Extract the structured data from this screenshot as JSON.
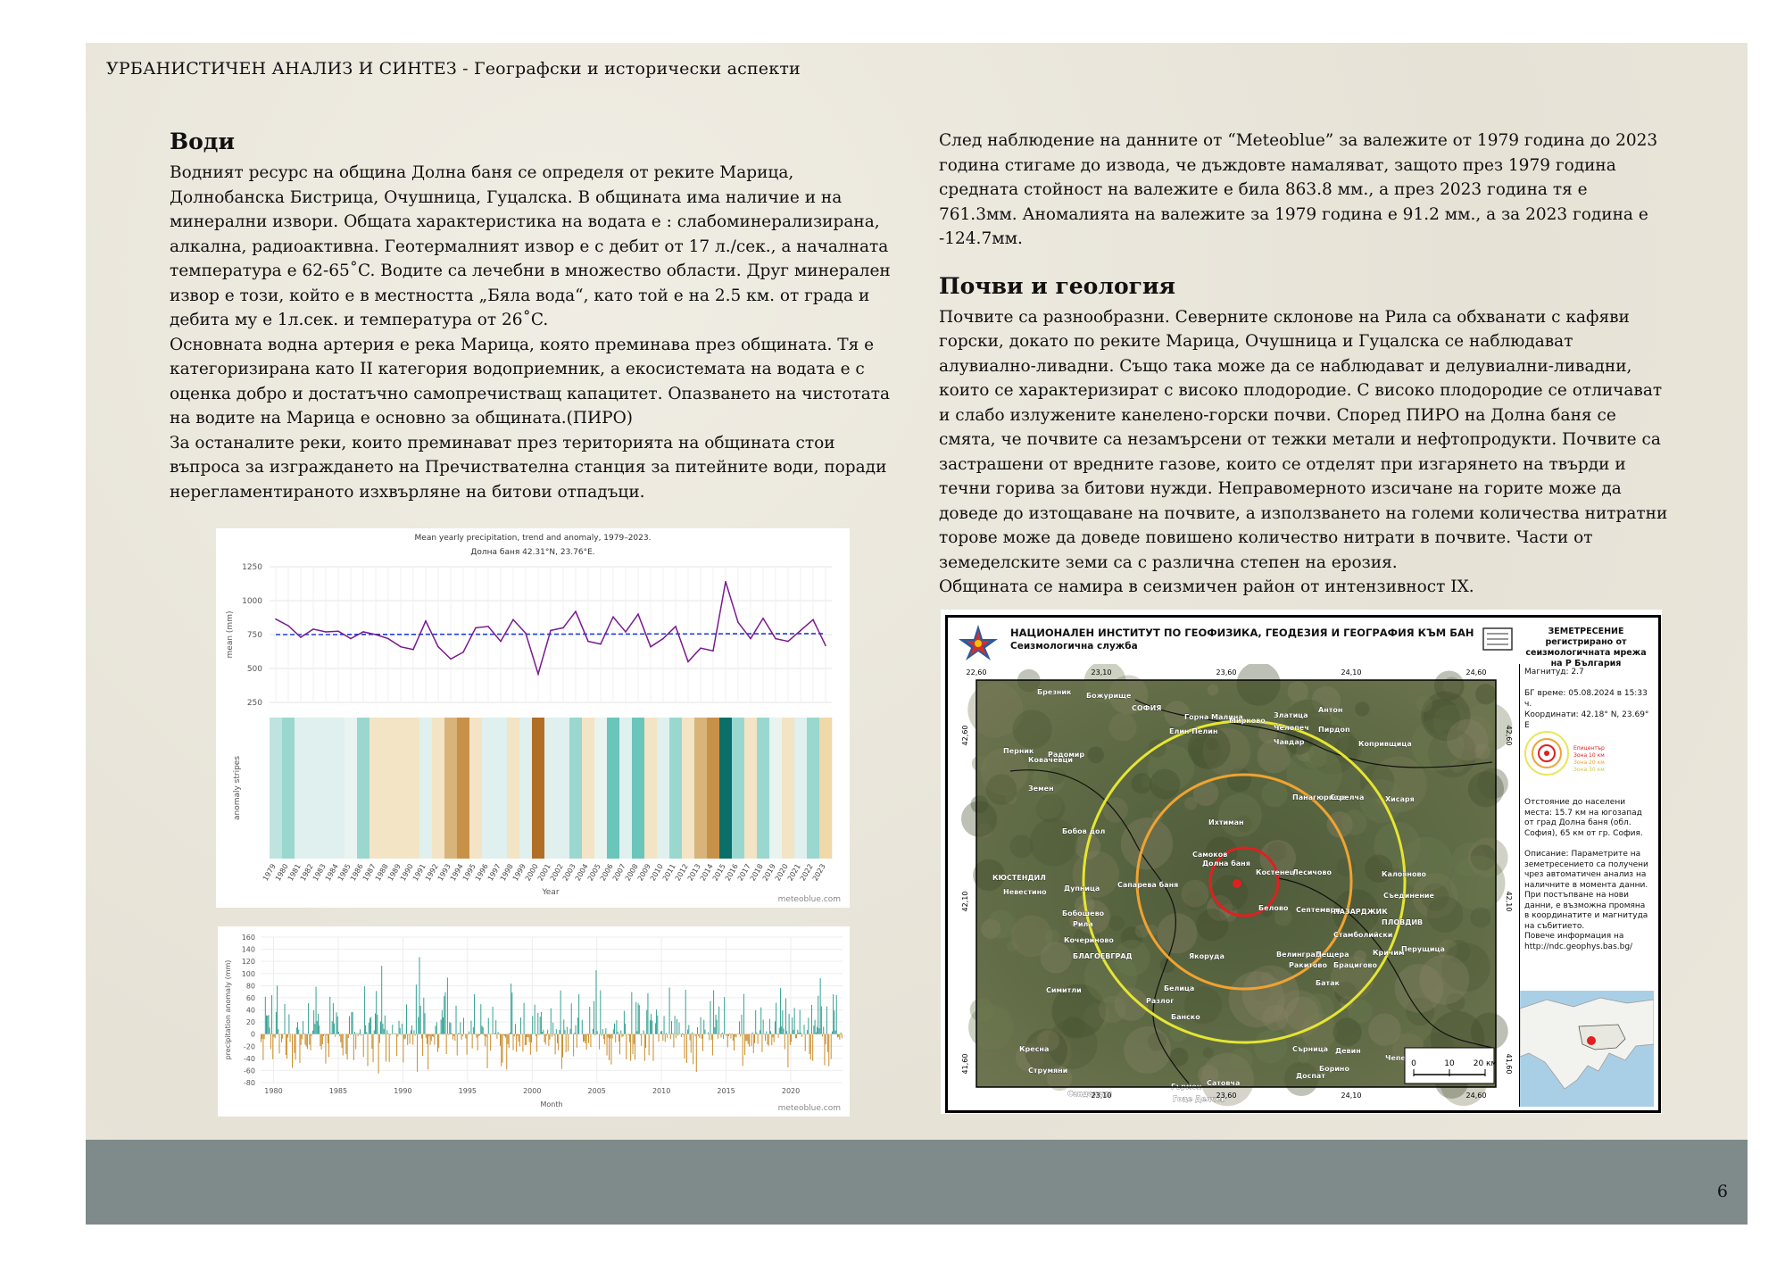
{
  "header": {
    "title": "УРБАНИСТИЧЕН АНАЛИЗ И СИНТЕЗ - Географски и исторически аспекти"
  },
  "page_number": "6",
  "left": {
    "heading": "Води",
    "para1": "Водният ресурс на община Долна баня се определя от реките Марица, Долнобанска Бистрица, Очушница, Гуцалска. В общината има наличие и на минерални извори. Общата характеристика на водата е : слабоминерализирана, алкална, радиоактивна. Геотермалният извор е с дебит от 17 л./сек., а началната температура е 62-65˚C. Водите са лечебни в множество области. Друг минерален извор е този, който е в местността „Бяла вода“, като той е на 2.5 км. от града и дебита му е 1л.сек. и температура от 26˚C.",
    "para2": "Основната водна артерия е река Марица, която преминава през общината. Тя е категоризирана като II категория водоприемник, а екосистемата на водата е с оценка добро и достатъчно самопречистващ капацитет. Опазването на чистотата на водите на Марица е основно за общината.(ПИРО)",
    "para3": "За останалите реки, които преминават през територията на общината стои въпроса за изграждането на Пречиствателна станция за питейните води, поради нерегламентираното изхвърляне на битови отпадъци."
  },
  "right": {
    "para1": "След наблюдение на данните от “Meteoblue” за валежите от 1979 година до 2023 година стигаме до извода, че дъждовте намаляват, защото през 1979 година средната стойност на валежите е била 863.8 мм., а през 2023 година тя е 761.3мм. Аномалията на валежите за 1979 година е 91.2 мм., а за 2023 година е -124.7мм.",
    "heading": "Почви и геология",
    "para2": "Почвите са разнообразни. Северните склонове на Рила са обхванати с кафяви горски, докато по реките Марица, Очушница и Гуцалска се наблюдават алувиално-ливадни. Също така може да се наблюдават и делувиални-ливадни, които се характеризират с високо плодородие. С високо плодородие се отличават и слабо излужените канелено-горски почви. Според ПИРО на Долна баня се смята, че почвите са незамърсени от тежки метали и нефтопродукти. Почвите са застрашени от вредните газове, които се отделят при изгарянето на твърди и течни горива за битови нужди. Неправомерното изсичане на горите може да доведе до изтощаване на почвите, а използването на големи количества нитратни торове може да доведе повишено количество нитрати в почвите. Части от земеделските земи са с различна степен на ерозия.",
    "para3": "Общината се намира в сеизмичен район от интензивност IX."
  },
  "chart_data": [
    {
      "type": "line",
      "title": "Mean yearly precipitation, trend and anomaly, 1979–2023.",
      "subtitle": "Долна баня 42.31°N, 23.76°E.",
      "xlabel": "Year",
      "ylabel": "mean (mm)",
      "ylim": [
        250,
        1250
      ],
      "yticks": [
        250,
        500,
        750,
        1000,
        1250
      ],
      "x": [
        1979,
        1980,
        1981,
        1982,
        1983,
        1984,
        1985,
        1986,
        1987,
        1988,
        1989,
        1990,
        1991,
        1992,
        1993,
        1994,
        1995,
        1996,
        1997,
        1998,
        1999,
        2000,
        2001,
        2002,
        2003,
        2004,
        2005,
        2006,
        2007,
        2008,
        2009,
        2010,
        2011,
        2012,
        2013,
        2014,
        2015,
        2016,
        2017,
        2018,
        2019,
        2020,
        2021,
        2022,
        2023
      ],
      "series": [
        {
          "values": [
            864,
            815,
            730,
            790,
            770,
            775,
            720,
            770,
            750,
            720,
            660,
            640,
            850,
            660,
            570,
            620,
            800,
            810,
            700,
            860,
            760,
            460,
            780,
            800,
            920,
            700,
            680,
            880,
            770,
            900,
            660,
            720,
            810,
            550,
            650,
            630,
            1140,
            840,
            720,
            870,
            720,
            700,
            780,
            860,
            670
          ]
        },
        {
          "values": [
            750,
            750,
            750,
            750,
            750,
            750,
            751,
            751,
            751,
            751,
            751,
            751,
            752,
            752,
            752,
            752,
            752,
            752,
            753,
            753,
            753,
            753,
            753,
            753,
            754,
            754,
            754,
            754,
            754,
            754,
            755,
            755,
            755,
            755,
            755,
            755,
            756,
            756,
            756,
            756,
            756,
            756,
            757,
            757,
            757
          ]
        }
      ],
      "stripes_label": "anomaly stripes",
      "stripe_colors": [
        "#bfe4df",
        "#9ad7cf",
        "#dff0ee",
        "#dff0ee",
        "#dff0ee",
        "#dff0ee",
        "#e9f3f0",
        "#9ad7cf",
        "#f3e4c5",
        "#f3e4c5",
        "#f3e4c5",
        "#f3e4c5",
        "#dff0ee",
        "#f3e4c5",
        "#d8b47a",
        "#c8914a",
        "#f3e4c5",
        "#dff0ee",
        "#dff0ee",
        "#f3e4c5",
        "#dff0ee",
        "#b06f25",
        "#dff0ee",
        "#dff0ee",
        "#9ad7cf",
        "#f3e4c5",
        "#e9f3f0",
        "#6ac5ba",
        "#dff0ee",
        "#6ac5ba",
        "#f3e4c5",
        "#dff0ee",
        "#9ad7cf",
        "#f3e4c5",
        "#d8b47a",
        "#c8914a",
        "#0a6f69",
        "#9ad7cf",
        "#f3e4c5",
        "#9ad7cf",
        "#e9f3f0",
        "#f3e4c5",
        "#dff0ee",
        "#9ad7cf",
        "#efd9a8"
      ],
      "credit": "meteoblue.com",
      "colors": {
        "line": "#7a1a8f",
        "trend": "#1f3fe0"
      }
    },
    {
      "type": "bar",
      "xlabel": "Month",
      "ylabel": "precipitation anomaly (mm)",
      "ylim": [
        -80,
        160
      ],
      "yticks": [
        -80,
        -60,
        -40,
        -20,
        0,
        20,
        40,
        60,
        80,
        100,
        120,
        140,
        160
      ],
      "xticks": [
        1980,
        1985,
        1990,
        1995,
        2000,
        2005,
        2010,
        2015,
        2020
      ],
      "x_start": 1979,
      "x_end": 2024,
      "credit": "meteoblue.com",
      "colors": {
        "positive": "#2e9f8f",
        "negative": "#c8881f"
      }
    }
  ],
  "map": {
    "title": "НАЦИОНАЛЕН ИНСТИТУТ ПО ГЕОФИЗИКА, ГЕОДЕЗИЯ И ГЕОГРАФИЯ КЪМ БАН",
    "subtitle": "Сеизмологична служба",
    "right_title": "ЗЕМЕТРЕСЕНИЕ регистрирано от сеизмологичната мрежа на Р България",
    "magnitude": "Магнитуд: 2.7",
    "time": "БГ време: 05.08.2024 в 15:33 ч.",
    "coords": "Координати: 42.18° N, 23.69° E",
    "legend": [
      "Епицентър",
      "Зона 10 км",
      "Зона 20 км",
      "Зона 30 км"
    ],
    "distance": "Отстояние до населени места: 15.7 км на югозапад от град Долна баня (обл. София), 65 км от гр. София.",
    "description": "Описание: Параметрите на земетресението са получени чрез автоматичен анализ на наличните в момента данни. При постъпване на нови данни, е възможна промяна в координатите и магнитуда на събитието.",
    "more_info": "Повече информация на http://ndc.geophys.bas.bg/",
    "lon_ticks_top": [
      "22,60",
      "23,10",
      "23,60",
      "24,10",
      "24,60"
    ],
    "lon_ticks_bottom": [
      "23,10",
      "23,60",
      "24,10",
      "24,60"
    ],
    "lat_ticks_left": [
      "42,60",
      "42,10",
      "41,60"
    ],
    "lat_ticks_right": [
      "42,60",
      "42,10",
      "41,60"
    ],
    "scale": [
      "0",
      "10",
      "20 км"
    ],
    "places": [
      "Брезник",
      "Божурище",
      "СОФИЯ",
      "Горна Малина",
      "Мирково",
      "Златица",
      "Антон",
      "Челопеч",
      "Чавдар",
      "Пирдоп",
      "Копривщица",
      "Перник",
      "Радомир",
      "Елин Пелин",
      "Ковачевци",
      "Земен",
      "Ихтиман",
      "Панагюрище",
      "Стрелча",
      "Хисаря",
      "Бобов дол",
      "Самоков",
      "Долна баня",
      "Костенец",
      "Лесичово",
      "Калояново",
      "КЮСТЕНДИЛ",
      "Невестино",
      "Дупница",
      "Сапарева баня",
      "Съединение",
      "Белово",
      "Септември",
      "ПАЗАРДЖИК",
      "Бобошево",
      "Рила",
      "Стамболийски",
      "Кричим",
      "ПЛОВДИВ",
      "Перущица",
      "Кочериново",
      "Велинград",
      "Ракитово",
      "Пещера",
      "Брацигово",
      "БЛАГОЕВГРАД",
      "Якоруда",
      "Батак",
      "Симитли",
      "Белица",
      "Разлог",
      "Банско",
      "Сърница",
      "Девин",
      "Кресна",
      "Борино",
      "Чепеларе",
      "Струмяни",
      "Доспат",
      "Сандански",
      "Гърмен",
      "Сатовча",
      "Гоце Делчев"
    ]
  }
}
